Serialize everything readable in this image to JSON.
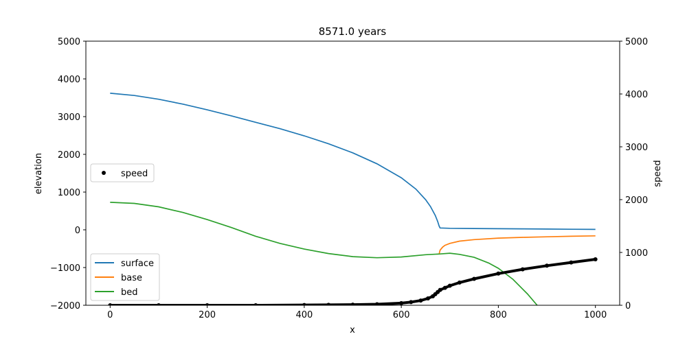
{
  "chart_data": {
    "type": "line",
    "title": "8571.0 years",
    "xlabel": "x",
    "ylabel_left": "elevation",
    "ylabel_right": "speed",
    "xlim": [
      -50,
      1050
    ],
    "ylim_left": [
      -2000,
      5000
    ],
    "ylim_right": [
      0,
      5000
    ],
    "xticks": [
      0,
      200,
      400,
      600,
      800,
      1000
    ],
    "yticks_left": [
      -2000,
      -1000,
      0,
      1000,
      2000,
      3000,
      4000,
      5000
    ],
    "yticks_right": [
      0,
      1000,
      2000,
      3000,
      4000,
      5000
    ],
    "grid": false,
    "legend_left": {
      "location": "lower-left",
      "entries": [
        "surface",
        "base",
        "bed"
      ]
    },
    "legend_right": {
      "location": "center-left",
      "entries": [
        "speed"
      ]
    },
    "series": [
      {
        "name": "surface",
        "axis": "left",
        "color": "#1f77b4",
        "x": [
          0,
          50,
          100,
          150,
          200,
          250,
          300,
          350,
          400,
          450,
          500,
          550,
          600,
          630,
          650,
          660,
          670,
          675,
          678,
          680,
          700,
          750,
          800,
          850,
          900,
          950,
          1000
        ],
        "y": [
          3620,
          3560,
          3460,
          3330,
          3180,
          3020,
          2850,
          2680,
          2490,
          2280,
          2040,
          1750,
          1380,
          1080,
          800,
          620,
          380,
          220,
          100,
          50,
          40,
          35,
          30,
          25,
          20,
          15,
          10
        ]
      },
      {
        "name": "base",
        "axis": "left",
        "color": "#ff7f0e",
        "x": [
          678,
          680,
          685,
          690,
          700,
          720,
          750,
          800,
          850,
          900,
          950,
          1000
        ],
        "y": [
          -640,
          -540,
          -460,
          -410,
          -360,
          -300,
          -260,
          -220,
          -200,
          -185,
          -170,
          -160
        ]
      },
      {
        "name": "bed",
        "axis": "left",
        "color": "#2ca02c",
        "x": [
          0,
          50,
          100,
          150,
          200,
          250,
          300,
          350,
          400,
          450,
          500,
          550,
          600,
          650,
          680,
          700,
          720,
          750,
          780,
          800,
          830,
          860,
          880
        ],
        "y": [
          730,
          700,
          610,
          460,
          270,
          60,
          -170,
          -360,
          -510,
          -630,
          -710,
          -740,
          -720,
          -660,
          -640,
          -620,
          -650,
          -730,
          -880,
          -1020,
          -1310,
          -1700,
          -2000
        ]
      },
      {
        "name": "speed",
        "axis": "right",
        "color": "#000000",
        "marker": "dot",
        "x": [
          0,
          100,
          200,
          300,
          400,
          450,
          500,
          550,
          600,
          620,
          640,
          655,
          665,
          670,
          675,
          680,
          690,
          700,
          720,
          750,
          800,
          850,
          900,
          950,
          1000
        ],
        "y": [
          0,
          0,
          0,
          0,
          5,
          8,
          12,
          20,
          40,
          60,
          90,
          130,
          170,
          210,
          250,
          290,
          330,
          370,
          430,
          500,
          600,
          680,
          750,
          810,
          870
        ]
      }
    ]
  }
}
